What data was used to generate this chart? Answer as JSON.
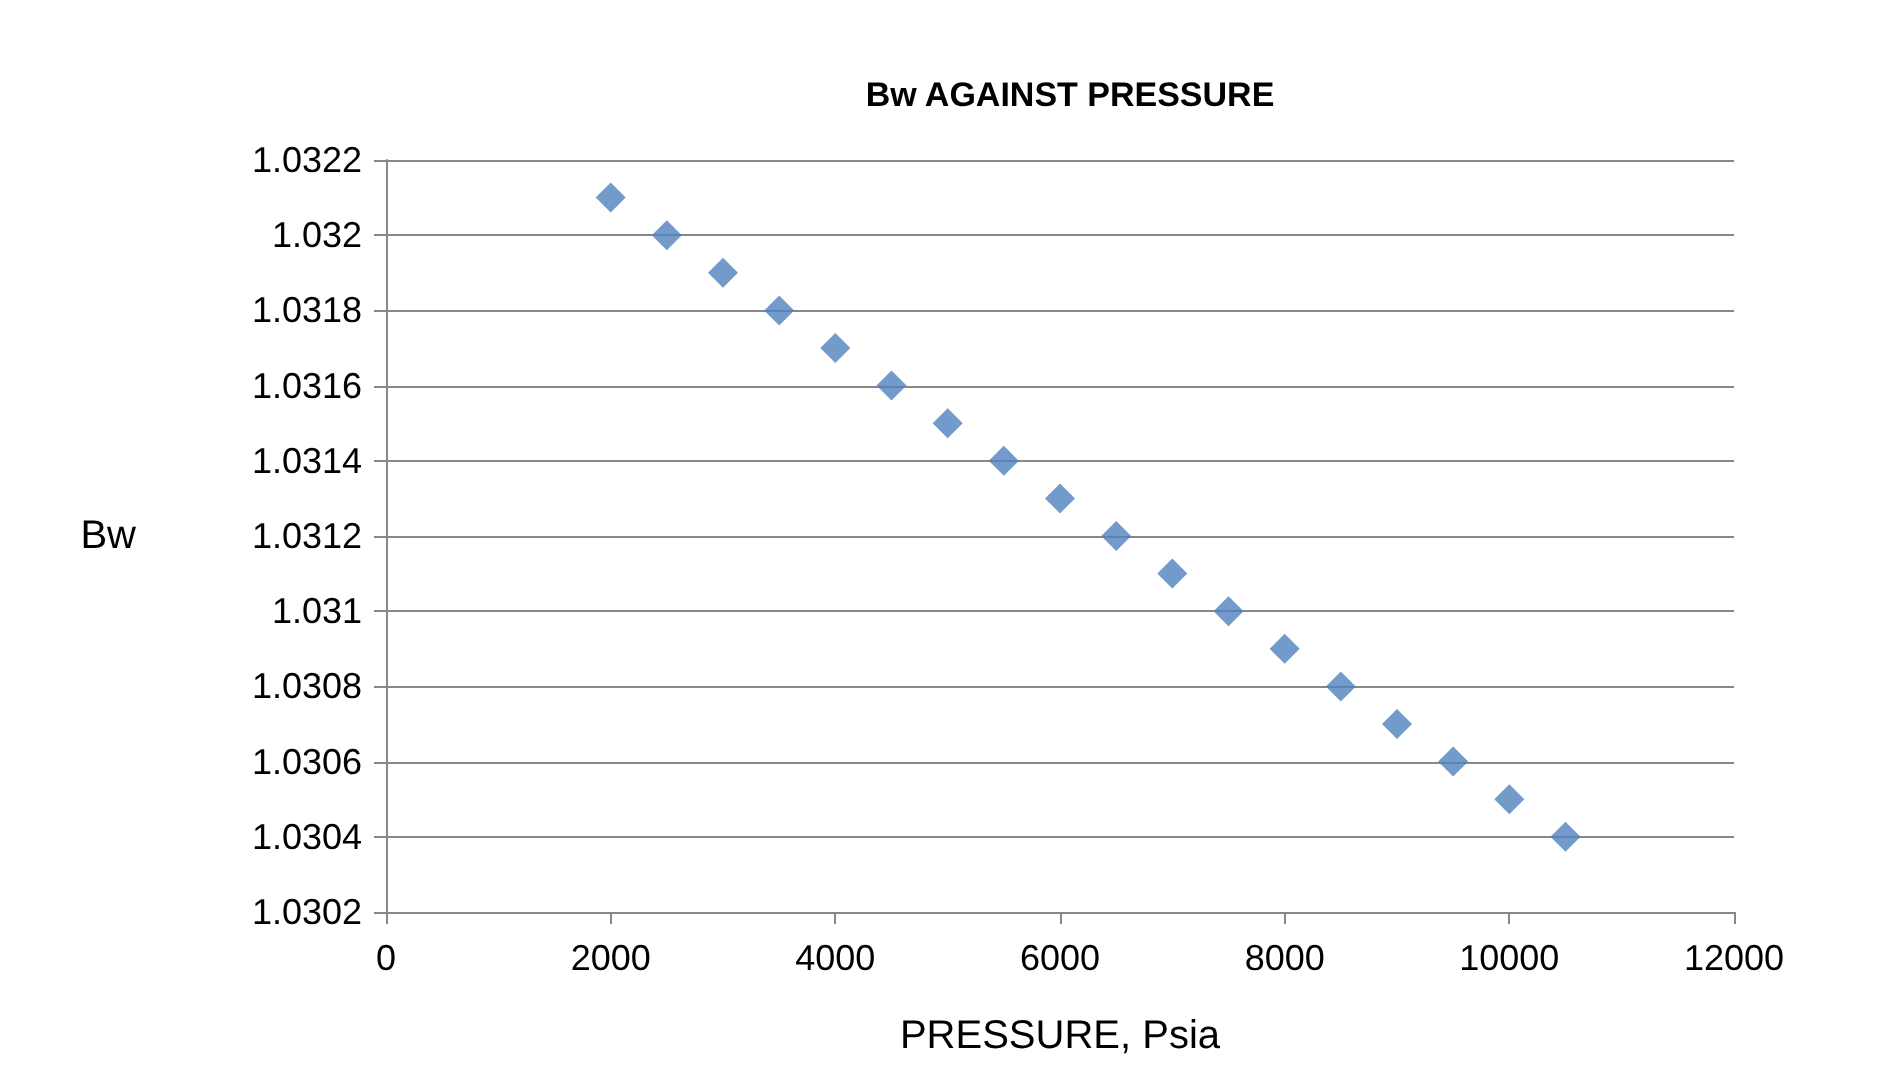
{
  "chart_data": {
    "type": "scatter",
    "title": "Bw AGAINST PRESSURE",
    "xlabel": "PRESSURE, Psia",
    "ylabel": "Bw",
    "x": [
      2000,
      2500,
      3000,
      3500,
      4000,
      4500,
      5000,
      5500,
      6000,
      6500,
      7000,
      7500,
      8000,
      8500,
      9000,
      9500,
      10000,
      10500
    ],
    "values": [
      1.0321,
      1.032,
      1.0319,
      1.0318,
      1.0317,
      1.0316,
      1.0315,
      1.0314,
      1.0313,
      1.0312,
      1.0311,
      1.031,
      1.0309,
      1.0308,
      1.0307,
      1.0306,
      1.0305,
      1.0304
    ],
    "color": "#4f81bd",
    "marker": "diamond",
    "grid": "y",
    "xlim": [
      0,
      12000
    ],
    "xticks": [
      0,
      2000,
      4000,
      6000,
      8000,
      10000,
      12000
    ],
    "ylim": [
      1.0302,
      1.0322
    ],
    "yticks": [
      1.0302,
      1.0304,
      1.0306,
      1.0308,
      1.031,
      1.0312,
      1.0314,
      1.0316,
      1.0318,
      1.032,
      1.0322
    ]
  }
}
